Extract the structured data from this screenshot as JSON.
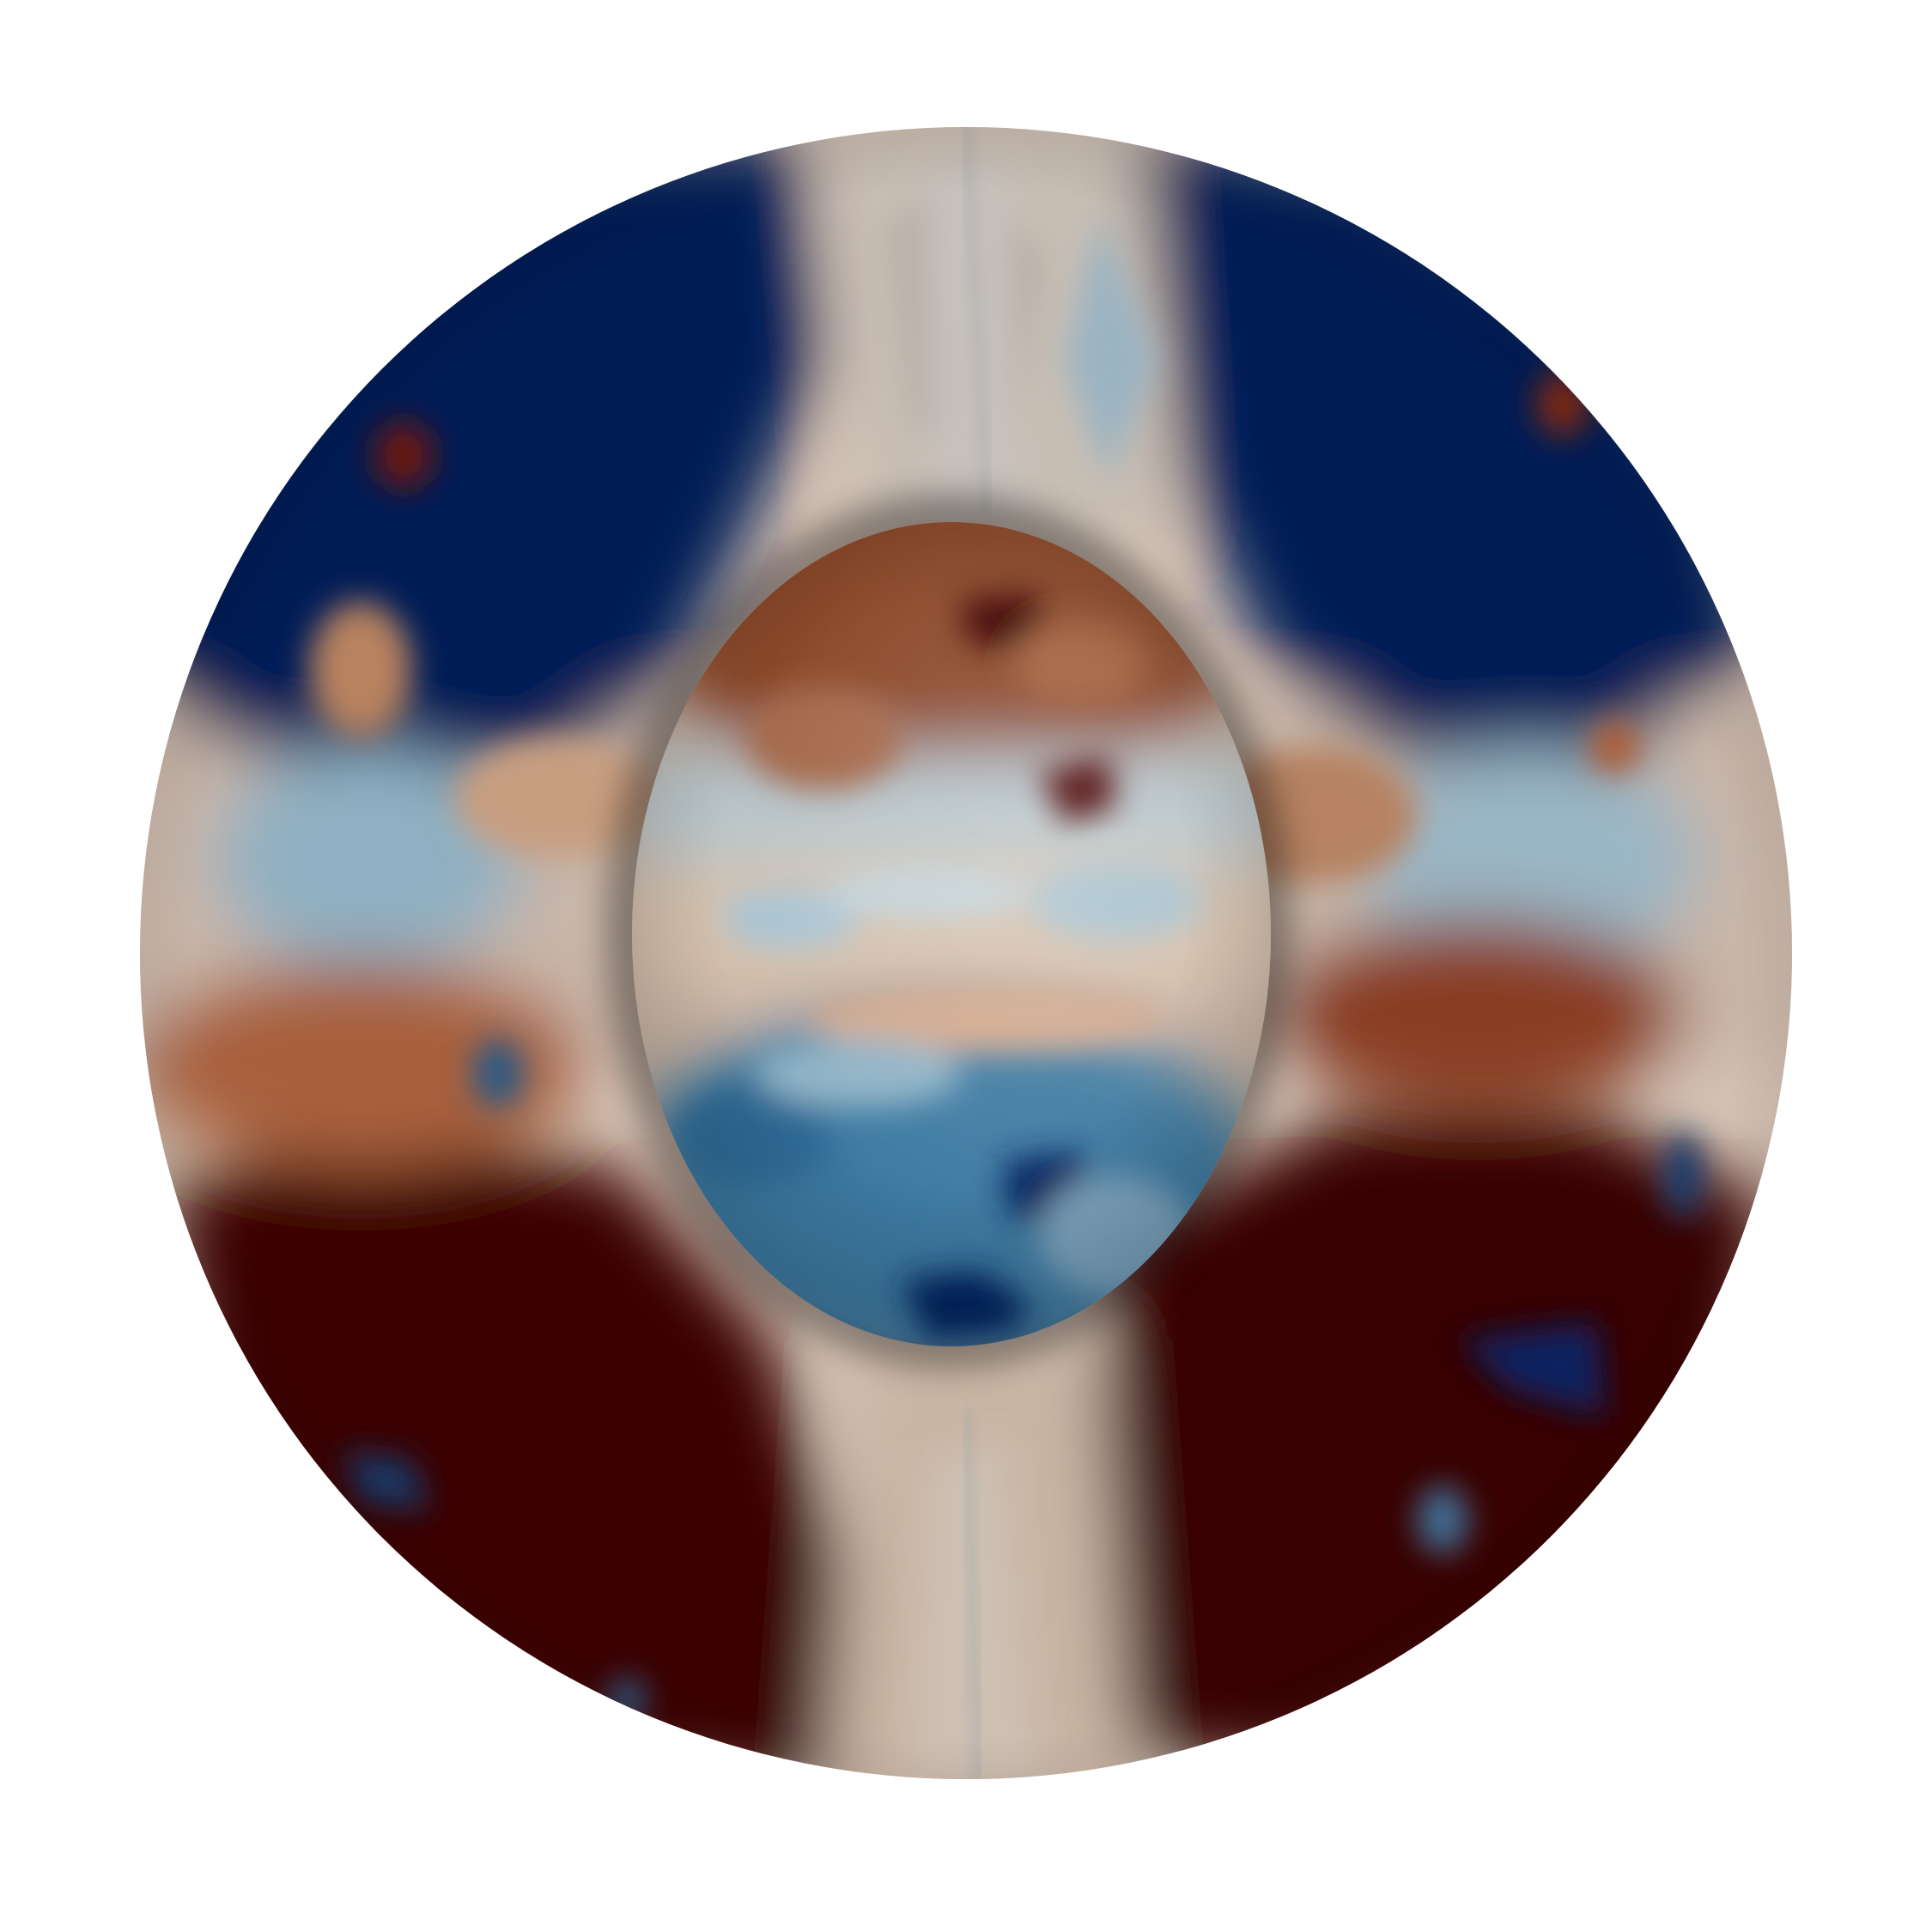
{
  "scene": {
    "subject": "",
    "colors": {
      "background": "#ffffff",
      "deep_blue": "#031c5c",
      "mid_blue": "#2f6e9c",
      "pale_blue": "#b9cdd6",
      "neutral": "#d9c7ba",
      "tan": "#c9936d",
      "brown": "#8a3a1c",
      "deep_red": "#3d0305",
      "edge_gray": "#8f9aa0"
    }
  }
}
